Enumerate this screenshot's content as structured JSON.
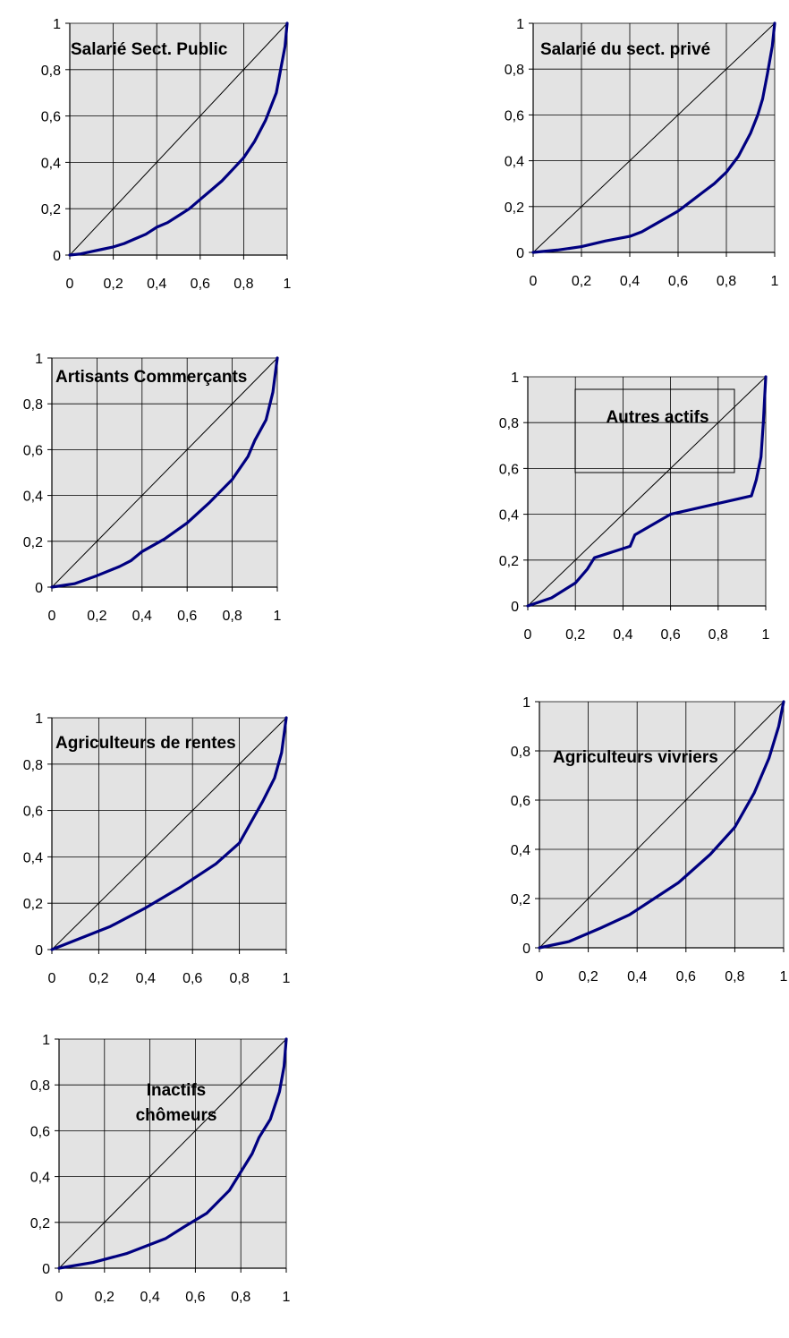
{
  "figure": {
    "colors": {
      "plot_bg": "#e3e3e3",
      "grid": "#000000",
      "curve": "#000080",
      "diagonal": "#000000"
    }
  },
  "chart_data": [
    {
      "type": "line",
      "title": "Salarié Sect. Public",
      "xlim": [
        0,
        1
      ],
      "ylim": [
        0,
        1
      ],
      "x_ticks": [
        "0",
        "0,2",
        "0,4",
        "0,6",
        "0,8",
        "1"
      ],
      "y_ticks": [
        "0",
        "0,2",
        "0,4",
        "0,6",
        "0,8",
        "1"
      ],
      "grid": true,
      "diagonal": {
        "x": [
          0,
          1
        ],
        "y": [
          0,
          1
        ]
      },
      "series": [
        {
          "x": [
            0,
            0.05,
            0.1,
            0.15,
            0.2,
            0.25,
            0.3,
            0.35,
            0.4,
            0.45,
            0.5,
            0.55,
            0.6,
            0.65,
            0.7,
            0.75,
            0.8,
            0.85,
            0.9,
            0.95,
            0.97,
            0.99,
            1.0
          ],
          "y": [
            0,
            0.005,
            0.015,
            0.025,
            0.035,
            0.05,
            0.07,
            0.09,
            0.12,
            0.14,
            0.17,
            0.2,
            0.24,
            0.28,
            0.32,
            0.37,
            0.42,
            0.49,
            0.58,
            0.7,
            0.8,
            0.9,
            1.0
          ]
        }
      ]
    },
    {
      "type": "line",
      "title": "Salarié du sect. privé",
      "xlim": [
        0,
        1
      ],
      "ylim": [
        0,
        1
      ],
      "x_ticks": [
        "0",
        "0,2",
        "0,4",
        "0,6",
        "0,8",
        "1"
      ],
      "y_ticks": [
        "0",
        "0,2",
        "0,4",
        "0,6",
        "0,8",
        "1"
      ],
      "grid": true,
      "diagonal": {
        "x": [
          0,
          1
        ],
        "y": [
          0,
          1
        ]
      },
      "series": [
        {
          "x": [
            0,
            0.1,
            0.2,
            0.3,
            0.4,
            0.45,
            0.5,
            0.55,
            0.6,
            0.65,
            0.7,
            0.75,
            0.8,
            0.85,
            0.9,
            0.93,
            0.95,
            0.97,
            0.99,
            1.0
          ],
          "y": [
            0,
            0.01,
            0.025,
            0.05,
            0.07,
            0.09,
            0.12,
            0.15,
            0.18,
            0.22,
            0.26,
            0.3,
            0.35,
            0.42,
            0.52,
            0.6,
            0.67,
            0.78,
            0.9,
            1.0
          ]
        }
      ]
    },
    {
      "type": "line",
      "title": "Artisants Commerçants",
      "xlim": [
        0,
        1
      ],
      "ylim": [
        0,
        1
      ],
      "x_ticks": [
        "0",
        "0,2",
        "0,4",
        "0,6",
        "0,8",
        "1"
      ],
      "y_ticks": [
        "0",
        "0,2",
        "0,4",
        "0,6",
        "0,8",
        "1"
      ],
      "grid": true,
      "diagonal": {
        "x": [
          0,
          1
        ],
        "y": [
          0,
          1
        ]
      },
      "series": [
        {
          "x": [
            0,
            0.1,
            0.2,
            0.3,
            0.35,
            0.4,
            0.5,
            0.6,
            0.7,
            0.8,
            0.87,
            0.9,
            0.95,
            0.98,
            1.0
          ],
          "y": [
            0,
            0.015,
            0.05,
            0.09,
            0.115,
            0.155,
            0.21,
            0.28,
            0.37,
            0.47,
            0.57,
            0.64,
            0.73,
            0.85,
            1.0
          ]
        }
      ]
    },
    {
      "type": "line",
      "title": "Autres actifs",
      "xlim": [
        0,
        1
      ],
      "ylim": [
        0,
        1
      ],
      "x_ticks": [
        "0",
        "0,2",
        "0,4",
        "0,6",
        "0,8",
        "1"
      ],
      "y_ticks": [
        "0",
        "0,2",
        "0,4",
        "0,6",
        "0,8",
        "1"
      ],
      "grid": true,
      "diagonal": {
        "x": [
          0,
          1
        ],
        "y": [
          0,
          1
        ]
      },
      "series": [
        {
          "x": [
            0,
            0.1,
            0.2,
            0.25,
            0.28,
            0.43,
            0.45,
            0.6,
            0.94,
            0.96,
            0.98,
            0.99,
            1.0
          ],
          "y": [
            0,
            0.035,
            0.1,
            0.16,
            0.21,
            0.26,
            0.31,
            0.4,
            0.48,
            0.55,
            0.65,
            0.8,
            1.0
          ]
        }
      ]
    },
    {
      "type": "line",
      "title": "Agriculteurs de rentes",
      "xlim": [
        0,
        1
      ],
      "ylim": [
        0,
        1
      ],
      "x_ticks": [
        "0",
        "0,2",
        "0,4",
        "0,6",
        "0,8",
        "1"
      ],
      "y_ticks": [
        "0",
        "0,2",
        "0,4",
        "0,6",
        "0,8",
        "1"
      ],
      "grid": true,
      "diagonal": {
        "x": [
          0,
          1
        ],
        "y": [
          0,
          1
        ]
      },
      "series": [
        {
          "x": [
            0,
            0.1,
            0.25,
            0.4,
            0.55,
            0.7,
            0.8,
            0.85,
            0.9,
            0.95,
            0.98,
            1.0
          ],
          "y": [
            0,
            0.04,
            0.1,
            0.18,
            0.27,
            0.37,
            0.46,
            0.55,
            0.64,
            0.74,
            0.85,
            1.0
          ]
        }
      ]
    },
    {
      "type": "line",
      "title": "Agriculteurs vivriers",
      "xlim": [
        0,
        1
      ],
      "ylim": [
        0,
        1
      ],
      "x_ticks": [
        "0",
        "0,2",
        "0,4",
        "0,6",
        "0,8",
        "1"
      ],
      "y_ticks": [
        "0",
        "0,2",
        "0,4",
        "0,6",
        "0,8",
        "1"
      ],
      "grid": true,
      "diagonal": {
        "x": [
          0,
          1
        ],
        "y": [
          0,
          1
        ]
      },
      "series": [
        {
          "x": [
            0,
            0.12,
            0.25,
            0.37,
            0.47,
            0.57,
            0.7,
            0.8,
            0.88,
            0.94,
            0.98,
            1.0
          ],
          "y": [
            0,
            0.025,
            0.08,
            0.135,
            0.2,
            0.265,
            0.38,
            0.49,
            0.63,
            0.77,
            0.9,
            1.0
          ]
        }
      ]
    },
    {
      "type": "line",
      "title": "Inactifs chômeurs",
      "title_lines": [
        "Inactifs",
        "chômeurs"
      ],
      "xlim": [
        0,
        1
      ],
      "ylim": [
        0,
        1
      ],
      "x_ticks": [
        "0",
        "0,2",
        "0,4",
        "0,6",
        "0,8",
        "1"
      ],
      "y_ticks": [
        "0",
        "0,2",
        "0,4",
        "0,6",
        "0,8",
        "1"
      ],
      "grid": true,
      "diagonal": {
        "x": [
          0,
          1
        ],
        "y": [
          0,
          1
        ]
      },
      "series": [
        {
          "x": [
            0,
            0.15,
            0.3,
            0.47,
            0.55,
            0.65,
            0.75,
            0.8,
            0.85,
            0.88,
            0.93,
            0.97,
            0.99,
            1.0
          ],
          "y": [
            0,
            0.025,
            0.065,
            0.13,
            0.18,
            0.24,
            0.34,
            0.42,
            0.5,
            0.57,
            0.65,
            0.77,
            0.88,
            1.0
          ]
        }
      ]
    }
  ]
}
